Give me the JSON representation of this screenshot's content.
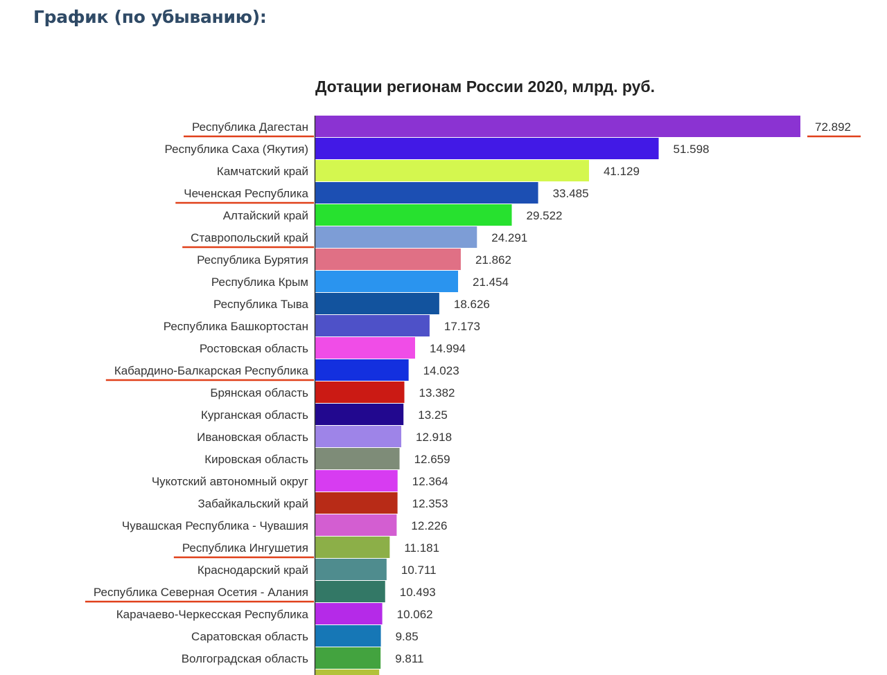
{
  "page": {
    "heading": "График (по убыванию):"
  },
  "chart_data": {
    "type": "bar",
    "orientation": "horizontal",
    "title": "Дотации регионам России 2020, млрд. руб.",
    "xlim": [
      0,
      72.892
    ],
    "categories": [
      "Республика Дагестан",
      "Республика Саха (Якутия)",
      "Камчатский край",
      "Чеченская Республика",
      "Алтайский край",
      "Ставропольский край",
      "Республика Бурятия",
      "Республика Крым",
      "Республика Тыва",
      "Республика Башкортостан",
      "Ростовская область",
      "Кабардино-Балкарская Республика",
      "Брянская область",
      "Курганская область",
      "Ивановская область",
      "Кировская область",
      "Чукотский автономный округ",
      "Забайкальский край",
      "Чувашская Республика - Чувашия",
      "Республика Ингушетия",
      "Краснодарский край",
      "Республика Северная Осетия - Алания",
      "Карачаево-Черкесская Республика",
      "Саратовская область",
      "Волгоградская область"
    ],
    "values": [
      72.892,
      51.598,
      41.129,
      33.485,
      29.522,
      24.291,
      21.862,
      21.454,
      18.626,
      17.173,
      14.994,
      14.023,
      13.382,
      13.25,
      12.918,
      12.659,
      12.364,
      12.353,
      12.226,
      11.181,
      10.711,
      10.493,
      10.062,
      9.85,
      9.811
    ],
    "value_labels": [
      "72.892",
      "51.598",
      "41.129",
      "33.485",
      "29.522",
      "24.291",
      "21.862",
      "21.454",
      "18.626",
      "17.173",
      "14.994",
      "14.023",
      "13.382",
      "13.25",
      "12.918",
      "12.659",
      "12.364",
      "12.353",
      "12.226",
      "11.181",
      "10.711",
      "10.493",
      "10.062",
      "9.85",
      "9.811"
    ],
    "colors": [
      "#8b33d2",
      "#4219e6",
      "#d4f74f",
      "#1c4fb3",
      "#27e12f",
      "#7d9dd6",
      "#e07085",
      "#2a94ef",
      "#12539e",
      "#4e51c8",
      "#f04de7",
      "#1330df",
      "#cb1a14",
      "#22088f",
      "#9e84e8",
      "#7e8c78",
      "#d73cf1",
      "#b82b17",
      "#d35ed1",
      "#8caf48",
      "#4f8c8e",
      "#337866",
      "#b52ae8",
      "#1677b6",
      "#43a33f"
    ],
    "partial_next_bar_color": "#b3c23a",
    "highlighted_categories": [
      "Республика Дагестан",
      "Чеченская Республика",
      "Ставропольский край",
      "Кабардино-Балкарская Республика",
      "Республика Ингушетия",
      "Республика Северная Осетия - Алания"
    ],
    "highlighted_value_labels": [
      "72.892"
    ],
    "annotation_color": "#e0401a"
  }
}
